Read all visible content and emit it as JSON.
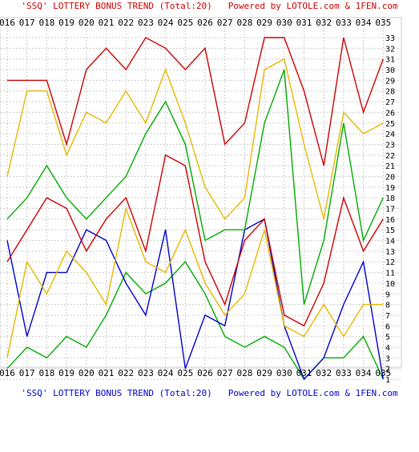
{
  "caption_top": {
    "left": "'SSQ' LOTTERY BONUS TREND (Total:20)",
    "right": "Powered by LOTOLE.com & 1FEN.com"
  },
  "caption_bottom": {
    "left": "'SSQ' LOTTERY BONUS TREND (Total:20)",
    "right": "Powered by LOTOLE.com & 1FEN.com"
  },
  "colors": {
    "caption_top": "#cc0000",
    "caption_bottom": "#0000cc",
    "grid": "#cccccc",
    "axis_text": "#000000"
  },
  "chart_data": {
    "type": "line",
    "title": "'SSQ' LOTTERY BONUS TREND (Total:20)",
    "x": [
      "016",
      "017",
      "018",
      "019",
      "020",
      "021",
      "022",
      "023",
      "024",
      "025",
      "026",
      "027",
      "028",
      "029",
      "030",
      "031",
      "032",
      "033",
      "034",
      "035"
    ],
    "ylim": [
      1,
      33
    ],
    "y_ticks": [
      1,
      2,
      3,
      4,
      5,
      6,
      7,
      8,
      9,
      10,
      11,
      12,
      13,
      14,
      15,
      16,
      17,
      18,
      19,
      20,
      21,
      22,
      23,
      24,
      25,
      26,
      27,
      28,
      29,
      30,
      31,
      32,
      33
    ],
    "grid": true,
    "x_axis_position": "top and bottom",
    "y_axis_position": "right",
    "series": [
      {
        "color": "#00aa00",
        "values": [
          2,
          4,
          3,
          5,
          4,
          7,
          11,
          9,
          10,
          12,
          9,
          5,
          4,
          5,
          4,
          1,
          3,
          3,
          5,
          1
        ]
      },
      {
        "color": "#0000cc",
        "values": [
          14,
          5,
          11,
          11,
          15,
          14,
          10,
          7,
          15,
          2,
          7,
          6,
          15,
          16,
          6,
          1,
          3,
          8,
          12,
          1
        ]
      },
      {
        "color": "#e6b800",
        "values": [
          3,
          12,
          9,
          13,
          11,
          8,
          17,
          12,
          11,
          15,
          10,
          7,
          9,
          15,
          6,
          5,
          8,
          5,
          8,
          8
        ]
      },
      {
        "color": "#cc0000",
        "values": [
          12,
          15,
          18,
          17,
          13,
          16,
          18,
          13,
          22,
          21,
          12,
          8,
          14,
          16,
          7,
          6,
          10,
          18,
          13,
          16
        ]
      },
      {
        "color": "#00aa00",
        "values": [
          16,
          18,
          21,
          18,
          16,
          18,
          20,
          24,
          27,
          23,
          14,
          15,
          15,
          25,
          30,
          8,
          14,
          25,
          14,
          18
        ]
      },
      {
        "color": "#e6b800",
        "values": [
          20,
          28,
          28,
          22,
          26,
          25,
          28,
          25,
          30,
          25,
          19,
          16,
          18,
          30,
          31,
          23,
          16,
          26,
          24,
          25
        ]
      },
      {
        "color": "#cc0000",
        "values": [
          29,
          29,
          29,
          23,
          30,
          32,
          30,
          33,
          32,
          30,
          32,
          23,
          25,
          33,
          33,
          28,
          21,
          33,
          26,
          31
        ]
      }
    ]
  }
}
